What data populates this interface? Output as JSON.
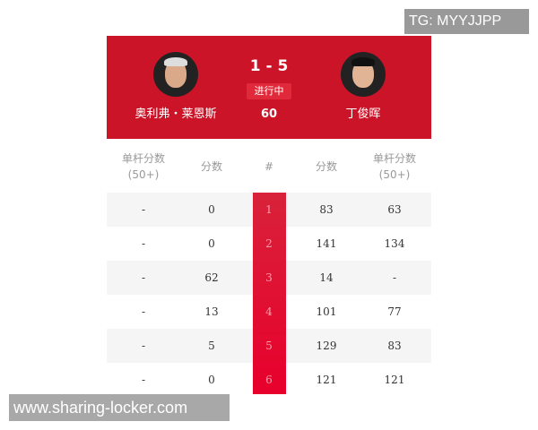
{
  "match": {
    "score": "1 - 5",
    "status": "进行中",
    "frame": "60"
  },
  "player_left": {
    "name": "奥利弗・莱恩斯"
  },
  "player_right": {
    "name": "丁俊晖"
  },
  "headers": [
    "单杆分数\n(50+)",
    "分数",
    "#",
    "分数",
    "单杆分数\n(50+)"
  ],
  "rows": [
    [
      "-",
      "0",
      "1",
      "83",
      "63"
    ],
    [
      "-",
      "0",
      "2",
      "141",
      "134"
    ],
    [
      "-",
      "62",
      "3",
      "14",
      "-"
    ],
    [
      "-",
      "13",
      "4",
      "101",
      "77"
    ],
    [
      "-",
      "5",
      "5",
      "129",
      "83"
    ],
    [
      "-",
      "0",
      "6",
      "121",
      "121"
    ]
  ],
  "watermarks": {
    "tg": "TG: MYYJJPP",
    "site": "www.sharing-locker.com"
  },
  "colors": {
    "banner": "#cc1428",
    "accent": "#e8002c"
  }
}
